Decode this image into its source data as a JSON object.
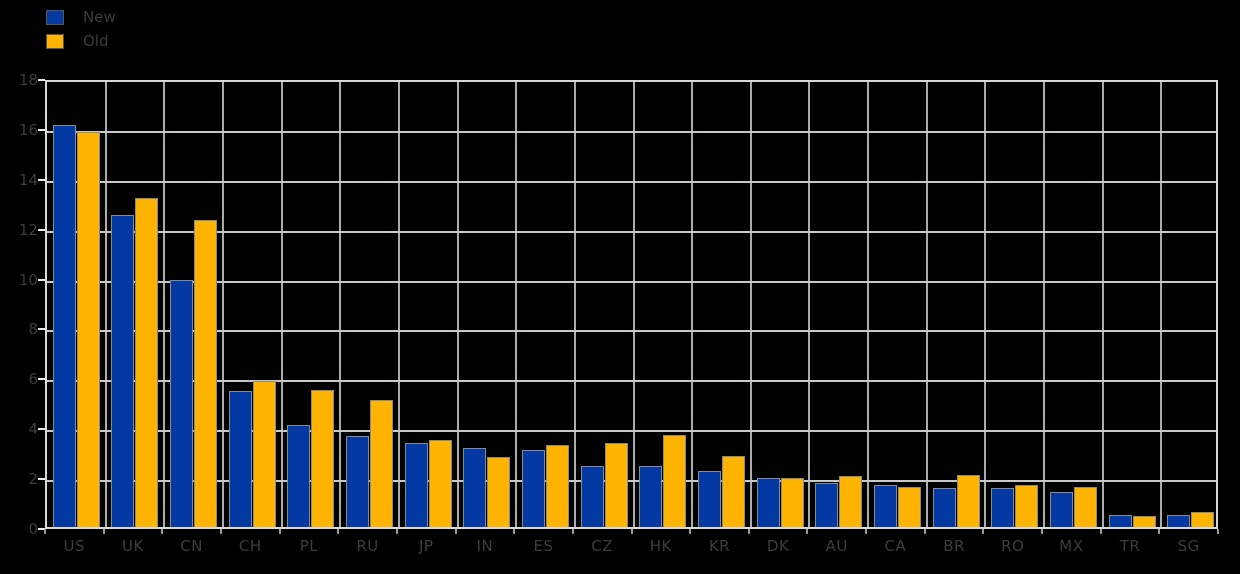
{
  "chart_data": {
    "type": "bar",
    "title": "",
    "xlabel": "",
    "ylabel": "",
    "categories": [
      "US",
      "UK",
      "CN",
      "CH",
      "PL",
      "RU",
      "JP",
      "IN",
      "ES",
      "CZ",
      "HK",
      "KR",
      "DK",
      "AU",
      "CA",
      "BR",
      "RO",
      "MX",
      "TR",
      "SG"
    ],
    "series": [
      {
        "name": "New",
        "color": "#0439A3",
        "values": [
          16.1,
          12.5,
          9.9,
          5.45,
          4.1,
          3.65,
          3.35,
          3.15,
          3.1,
          2.45,
          2.45,
          2.25,
          1.95,
          1.75,
          1.7,
          1.55,
          1.55,
          1.4,
          0.5,
          0.5
        ]
      },
      {
        "name": "Old",
        "color": "#FFB402",
        "values": [
          15.85,
          13.2,
          12.3,
          5.85,
          5.5,
          5.1,
          3.5,
          2.8,
          3.3,
          3.35,
          3.7,
          2.85,
          1.95,
          2.05,
          1.6,
          2.1,
          1.7,
          1.6,
          0.45,
          0.6
        ]
      }
    ],
    "ylim": [
      0,
      18
    ],
    "yticks": [
      0,
      2,
      4,
      6,
      8,
      10,
      12,
      14,
      16,
      18
    ],
    "grid": true,
    "legend_position": "top-left"
  },
  "colors": {
    "background": "#000000",
    "grid_vertical": "#aaadad",
    "grid_horizontal": "#c6c9c9",
    "frame": "#d8d8d8",
    "bar_edge": "#8a8a8a",
    "text": "#3c3c3c"
  }
}
